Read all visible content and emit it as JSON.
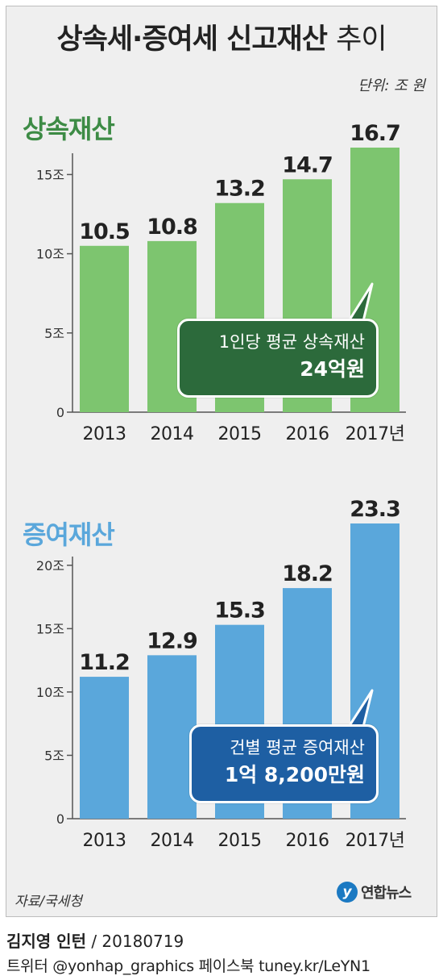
{
  "title": {
    "main": "상속세·증여세 신고재산",
    "suffix": "추이"
  },
  "unit_label": "단위: 조 원",
  "source": "자료/국세청",
  "logo_text": "연합뉴스",
  "credit": {
    "author": "김지영 인턴",
    "sep": " / ",
    "date": "20180719"
  },
  "social_line": "트위터 @yonhap_graphics  페이스북 tuney.kr/LeYN1",
  "colors": {
    "inheritance_bar": "#7dc56f",
    "inheritance_title": "#3d8b45",
    "inheritance_box": "#2c6a3b",
    "gift_bar": "#5aa7db",
    "gift_title": "#5aa7db",
    "gift_box": "#1e5fa3"
  },
  "chart_data": [
    {
      "type": "bar",
      "title": "상속재산",
      "categories": [
        "2013",
        "2014",
        "2015",
        "2016",
        "2017년"
      ],
      "values": [
        10.5,
        10.8,
        13.2,
        14.7,
        16.7
      ],
      "value_labels": [
        "10.5",
        "10.8",
        "13.2",
        "14.7",
        "16.7"
      ],
      "yticks": [
        0,
        5,
        10,
        15
      ],
      "ytick_labels": [
        "0",
        "5조",
        "10조",
        "15조"
      ],
      "ylim": [
        0,
        16.7
      ],
      "callout": {
        "line1": "1인당 평균 상속재산",
        "line2": "24억원"
      }
    },
    {
      "type": "bar",
      "title": "증여재산",
      "categories": [
        "2013",
        "2014",
        "2015",
        "2016",
        "2017년"
      ],
      "values": [
        11.2,
        12.9,
        15.3,
        18.2,
        23.3
      ],
      "value_labels": [
        "11.2",
        "12.9",
        "15.3",
        "18.2",
        "23.3"
      ],
      "yticks": [
        0,
        5,
        10,
        15,
        20
      ],
      "ytick_labels": [
        "0",
        "5조",
        "10조",
        "15조",
        "20조"
      ],
      "ylim": [
        0,
        23.3
      ],
      "callout": {
        "line1": "건별 평균 증여재산",
        "line2": "1억 8,200만원"
      }
    }
  ]
}
